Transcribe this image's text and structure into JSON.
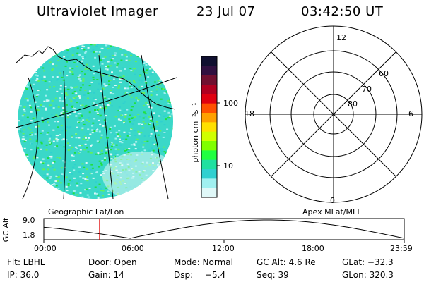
{
  "header": {
    "instrument": "Ultraviolet Imager",
    "date": "23 Jul 07",
    "time": "03:42:50 UT"
  },
  "panels": {
    "left_caption": "Geographic Lat/Lon",
    "right_caption": "Apex MLat/MLT"
  },
  "colorbar": {
    "unit_label": "photon cm⁻²s⁻¹",
    "ticks": [
      "100",
      "10"
    ],
    "colors": [
      "#101030",
      "#301040",
      "#701030",
      "#b00020",
      "#e00010",
      "#ff5000",
      "#ffa000",
      "#ffe000",
      "#d0ff00",
      "#80ff00",
      "#20ff40",
      "#20e0a0",
      "#30d0d0",
      "#a0f0f0",
      "#e0f8f8"
    ]
  },
  "polar": {
    "mlt_labels": [
      "12",
      "18",
      "6",
      "0"
    ],
    "mlat_labels": [
      "60",
      "70",
      "80"
    ]
  },
  "gc_alt": {
    "axis_label": "GC Alt",
    "ymax": "9.0",
    "ymin": "1.8",
    "time_ticks": [
      "00:00",
      "06:00",
      "12:00",
      "18:00",
      "23:59"
    ],
    "current_time_hours": 3.71
  },
  "info": {
    "flt": "Flt: LBHL",
    "door": "Door: Open",
    "mode": "Mode: Normal",
    "gc_alt": "GC Alt: 4.6 Re",
    "glat": "GLat: −32.3",
    "ip": "IP: 36.0",
    "gain": "Gain: 14",
    "dsp_label": "Dsp:",
    "dsp_value": "−5.4",
    "seq": "Seq: 39",
    "glon": "GLon: 320.3"
  }
}
